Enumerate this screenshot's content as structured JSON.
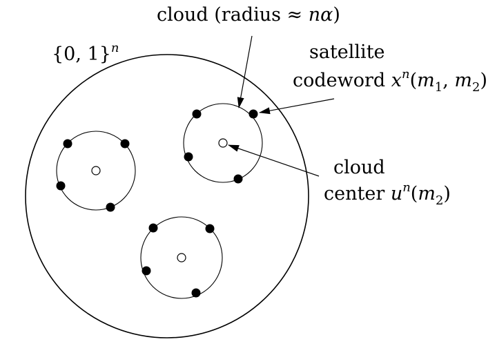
{
  "labels": {
    "space": {
      "base": "{0, 1}",
      "exp": "n"
    },
    "cloud_radius": {
      "prefix": "cloud (radius ≈ ",
      "n": "n",
      "alpha": "α",
      "suffix": ")"
    },
    "satellite": {
      "line1": "satellite",
      "line2_prefix": "codeword ",
      "x": "x",
      "exp": "n",
      "open": "(",
      "m1": "m",
      "m1_sub": "1",
      "comma": ", ",
      "m2": "m",
      "m2_sub": "2",
      "close": ")"
    },
    "cloud_center": {
      "line1": "cloud",
      "line2_prefix": "center ",
      "u": "u",
      "exp": "n",
      "open": "(",
      "m": "m",
      "sub": "2",
      "close": ")"
    }
  },
  "colors": {
    "stroke": "#000000",
    "filled_point": "#000000",
    "center_fill": "#ffffff",
    "background": "#ffffff"
  }
}
